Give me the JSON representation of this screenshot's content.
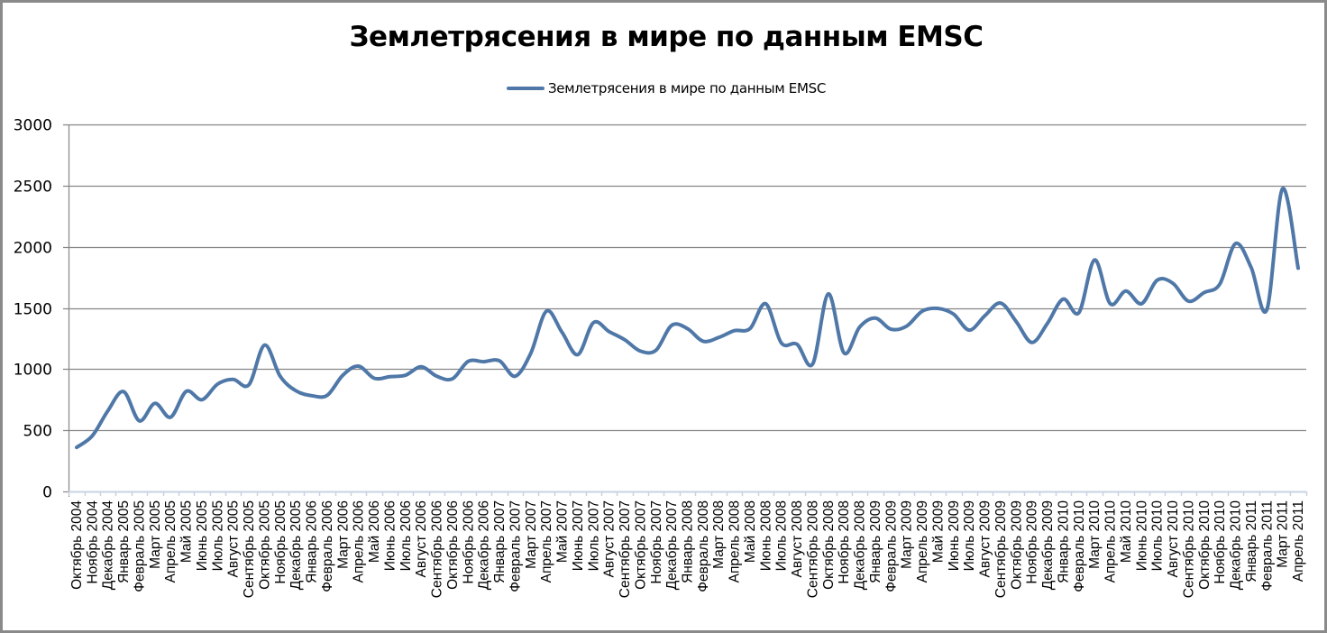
{
  "chart": {
    "title": "Землетрясения в мире по данным EMSC",
    "legend_label": "Землетрясения в мире по данным EMSC",
    "line_color": "#4f78a8",
    "grid_color": "#868686",
    "axis_color": "#c9d3e0"
  },
  "chart_data": {
    "type": "line",
    "title": "Землетрясения в мире по данным EMSC",
    "xlabel": "",
    "ylabel": "",
    "ylim": [
      0,
      3000
    ],
    "yticks": [
      0,
      500,
      1000,
      1500,
      2000,
      2500,
      3000
    ],
    "grid": true,
    "legend_position": "top",
    "smoothed": true,
    "categories": [
      "Октябрь 2004",
      "Ноябрь 2004",
      "Декабрь 2004",
      "Январь 2005",
      "Февраль 2005",
      "Март 2005",
      "Апрель 2005",
      "Май 2005",
      "Июнь 2005",
      "Июль 2005",
      "Август 2005",
      "Сентябрь 2005",
      "Октябрь 2005",
      "Ноябрь 2005",
      "Декабрь 2005",
      "Январь 2006",
      "Февраль 2006",
      "Март 2006",
      "Апрель 2006",
      "Май 2006",
      "Июнь 2006",
      "Июль 2006",
      "Август 2006",
      "Сентябрь 2006",
      "Октябрь 2006",
      "Ноябрь 2006",
      "Декабрь 2006",
      "Январь 2007",
      "Февраль 2007",
      "Март 2007",
      "Апрель 2007",
      "Май 2007",
      "Июнь 2007",
      "Июль 2007",
      "Август 2007",
      "Сентябрь 2007",
      "Октябрь 2007",
      "Ноябрь 2007",
      "Декабрь 2007",
      "Январь 2008",
      "Февраль 2008",
      "Март 2008",
      "Апрель 2008",
      "Май 2008",
      "Июнь 2008",
      "Июль 2008",
      "Август 2008",
      "Сентябрь 2008",
      "Октябрь 2008",
      "Ноябрь 2008",
      "Декабрь 2008",
      "Январь 2009",
      "Февраль 2009",
      "Март 2009",
      "Апрель 2009",
      "Май 2009",
      "Июнь 2009",
      "Июль 2009",
      "Август 2009",
      "Сентябрь 2009",
      "Октябрь 2009",
      "Ноябрь 2009",
      "Декабрь 2009",
      "Январь 2010",
      "Февраль 2010",
      "Март 2010",
      "Апрель 2010",
      "Май 2010",
      "Июнь 2010",
      "Июль 2010",
      "Август 2010",
      "Сентябрь 2010",
      "Октябрь 2010",
      "Ноябрь 2010",
      "Декабрь 2010",
      "Январь 2011",
      "Февраль 2011",
      "Март 2011",
      "Апрель 2011"
    ],
    "series": [
      {
        "name": "Землетрясения в мире по данным EMSC",
        "values": [
          360,
          455,
          660,
          816,
          577,
          720,
          607,
          818,
          750,
          877,
          916,
          872,
          1196,
          941,
          823,
          783,
          786,
          950,
          1024,
          925,
          938,
          950,
          1019,
          941,
          921,
          1063,
          1061,
          1068,
          941,
          1130,
          1474,
          1300,
          1118,
          1380,
          1307,
          1240,
          1147,
          1155,
          1358,
          1331,
          1228,
          1258,
          1314,
          1331,
          1535,
          1214,
          1203,
          1042,
          1615,
          1132,
          1344,
          1417,
          1326,
          1351,
          1474,
          1496,
          1449,
          1319,
          1437,
          1540,
          1388,
          1218,
          1376,
          1572,
          1461,
          1892,
          1535,
          1638,
          1535,
          1727,
          1702,
          1555,
          1626,
          1695,
          2026,
          1830,
          1486,
          2474,
          1825
        ]
      }
    ]
  }
}
